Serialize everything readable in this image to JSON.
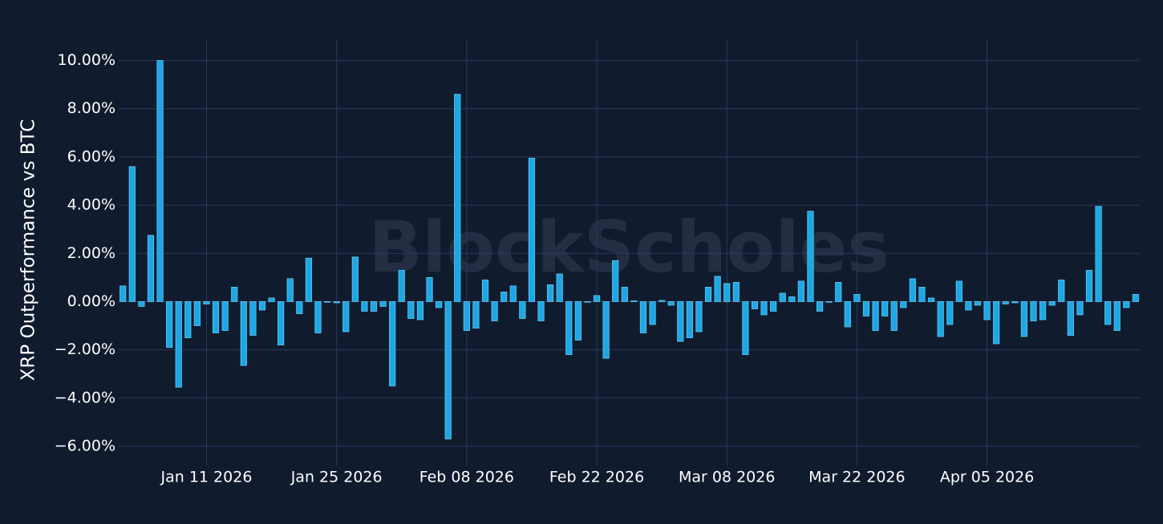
{
  "chart_data": {
    "type": "bar",
    "y_label": "XRP Outperformance vs BTC",
    "watermark": "BlockScholes",
    "color": "#1ea7e4",
    "grid": true,
    "x": [
      "2026-01-02",
      "2026-01-03",
      "2026-01-04",
      "2026-01-05",
      "2026-01-06",
      "2026-01-07",
      "2026-01-08",
      "2026-01-09",
      "2026-01-10",
      "2026-01-11",
      "2026-01-12",
      "2026-01-13",
      "2026-01-14",
      "2026-01-15",
      "2026-01-16",
      "2026-01-17",
      "2026-01-18",
      "2026-01-19",
      "2026-01-20",
      "2026-01-21",
      "2026-01-22",
      "2026-01-23",
      "2026-01-24",
      "2026-01-25",
      "2026-01-26",
      "2026-01-27",
      "2026-01-28",
      "2026-01-29",
      "2026-01-30",
      "2026-01-31",
      "2026-02-01",
      "2026-02-02",
      "2026-02-03",
      "2026-02-04",
      "2026-02-05",
      "2026-02-06",
      "2026-02-07",
      "2026-02-08",
      "2026-02-09",
      "2026-02-10",
      "2026-02-11",
      "2026-02-12",
      "2026-02-13",
      "2026-02-14",
      "2026-02-15",
      "2026-02-16",
      "2026-02-17",
      "2026-02-18",
      "2026-02-19",
      "2026-02-20",
      "2026-02-21",
      "2026-02-22",
      "2026-02-23",
      "2026-02-24",
      "2026-02-25",
      "2026-02-26",
      "2026-02-27",
      "2026-02-28",
      "2026-03-01",
      "2026-03-02",
      "2026-03-03",
      "2026-03-04",
      "2026-03-05",
      "2026-03-06",
      "2026-03-07",
      "2026-03-08",
      "2026-03-09",
      "2026-03-10",
      "2026-03-11",
      "2026-03-12",
      "2026-03-13",
      "2026-03-14",
      "2026-03-15",
      "2026-03-16",
      "2026-03-17",
      "2026-03-18",
      "2026-03-19",
      "2026-03-20",
      "2026-03-21",
      "2026-03-22",
      "2026-03-23",
      "2026-03-24",
      "2026-03-25",
      "2026-03-26",
      "2026-03-27",
      "2026-03-28",
      "2026-03-29",
      "2026-03-30",
      "2026-03-31",
      "2026-04-01",
      "2026-04-02",
      "2026-04-03",
      "2026-04-04",
      "2026-04-05",
      "2026-04-06",
      "2026-04-07",
      "2026-04-08",
      "2026-04-09",
      "2026-04-10",
      "2026-04-11",
      "2026-04-12",
      "2026-04-13",
      "2026-04-14",
      "2026-04-15",
      "2026-04-16",
      "2026-04-17",
      "2026-04-18",
      "2026-04-19",
      "2026-04-20",
      "2026-04-21"
    ],
    "values": [
      0.65,
      5.6,
      -0.2,
      2.75,
      10.0,
      -1.9,
      -3.55,
      -1.5,
      -1.0,
      -0.1,
      -1.3,
      -1.2,
      0.6,
      -2.65,
      -1.4,
      -0.35,
      0.15,
      -1.8,
      0.95,
      -0.5,
      1.8,
      -1.3,
      -0.02,
      -0.05,
      -1.25,
      1.85,
      -0.4,
      -0.4,
      -0.2,
      -3.5,
      1.3,
      -0.7,
      -0.75,
      1.0,
      -0.25,
      -5.7,
      8.6,
      -1.2,
      -1.1,
      0.9,
      -0.8,
      0.4,
      0.65,
      -0.7,
      5.95,
      -0.8,
      0.7,
      1.15,
      -2.2,
      -1.6,
      -0.02,
      0.25,
      -2.35,
      1.7,
      0.6,
      0.03,
      -1.3,
      -0.95,
      0.05,
      -0.15,
      -1.65,
      -1.5,
      -1.25,
      0.6,
      1.05,
      0.75,
      0.8,
      -2.2,
      -0.3,
      -0.55,
      -0.4,
      0.35,
      0.2,
      0.85,
      3.75,
      -0.4,
      -0.02,
      0.8,
      -1.05,
      0.3,
      -0.6,
      -1.2,
      -0.6,
      -1.2,
      -0.25,
      0.95,
      0.6,
      0.15,
      -1.45,
      -0.95,
      0.85,
      -0.35,
      -0.15,
      -0.75,
      -1.75,
      -0.1,
      -0.05,
      -1.45,
      -0.8,
      -0.75,
      -0.15,
      0.9,
      -1.4,
      -0.55,
      1.3,
      3.95,
      -0.95,
      -1.2,
      -0.25,
      0.3
    ],
    "ylim": [
      -6.6,
      10.85
    ],
    "yticks": [
      {
        "value": -6,
        "label": "−6.00%"
      },
      {
        "value": -4,
        "label": "−4.00%"
      },
      {
        "value": -2,
        "label": "−2.00%"
      },
      {
        "value": 0,
        "label": "0.00%"
      },
      {
        "value": 2,
        "label": "2.00%"
      },
      {
        "value": 4,
        "label": "4.00%"
      },
      {
        "value": 6,
        "label": "6.00%"
      },
      {
        "value": 8,
        "label": "8.00%"
      },
      {
        "value": 10,
        "label": "10.00%"
      }
    ],
    "xticks": [
      {
        "value": "2026-01-11",
        "label": "Jan 11 2026"
      },
      {
        "value": "2026-01-25",
        "label": "Jan 25 2026"
      },
      {
        "value": "2026-02-08",
        "label": "Feb 08 2026"
      },
      {
        "value": "2026-02-22",
        "label": "Feb 22 2026"
      },
      {
        "value": "2026-03-08",
        "label": "Mar 08 2026"
      },
      {
        "value": "2026-03-22",
        "label": "Mar 22 2026"
      },
      {
        "value": "2026-04-05",
        "label": "Apr 05 2026"
      }
    ]
  }
}
